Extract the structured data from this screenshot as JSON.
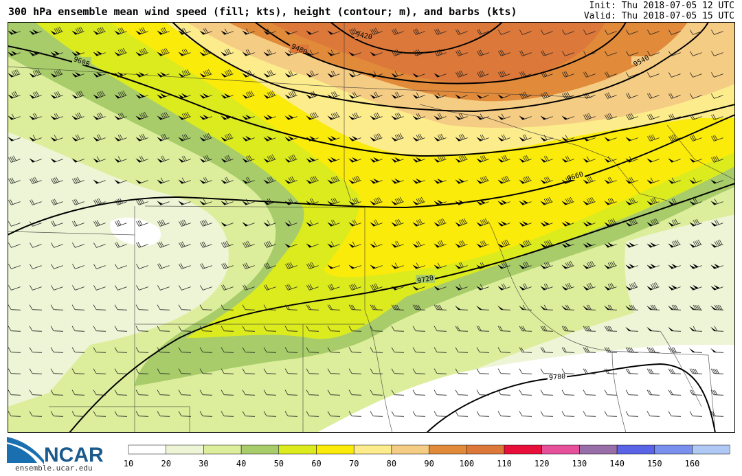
{
  "header": {
    "title": "300 hPa ensemble mean wind speed (fill; kts), height (contour; m), and barbs (kts)",
    "init": "Init: Thu 2018-07-05 12 UTC",
    "valid": "Valid: Thu 2018-07-05 15 UTC"
  },
  "branding": {
    "logo_text": "NCAR",
    "url": "ensemble.ucar.edu"
  },
  "contours": {
    "labels": [
      "9420",
      "9480",
      "9540",
      "9600",
      "9660",
      "9720",
      "9780"
    ]
  },
  "colorbar": {
    "ticks": [
      "10",
      "20",
      "30",
      "40",
      "50",
      "60",
      "70",
      "80",
      "90",
      "100",
      "110",
      "120",
      "130",
      "140",
      "150",
      "160"
    ],
    "colors": [
      "#ffffff",
      "#eef5d6",
      "#dcee9c",
      "#a8cc6a",
      "#dceb1e",
      "#faeb0a",
      "#fcec8c",
      "#f5cc84",
      "#e08a3a",
      "#dc783a",
      "#e8103a",
      "#e6509a",
      "#986ea8",
      "#5a64e6",
      "#7a90ee",
      "#b0c8f4"
    ]
  }
}
